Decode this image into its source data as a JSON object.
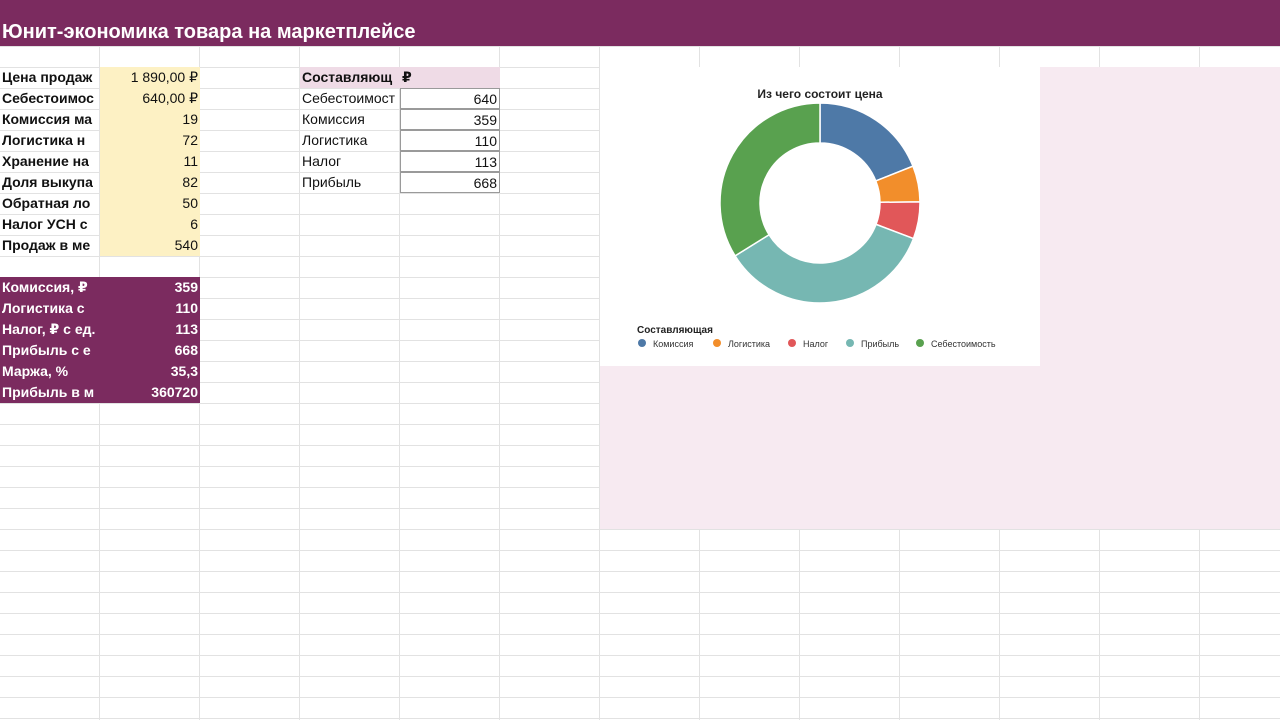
{
  "sheet": {
    "title": "Юнит-экономика товара на маркетплейсе"
  },
  "inputs": [
    {
      "label": "Цена продаж",
      "value": "1 890,00 ₽"
    },
    {
      "label": "Себестоимос",
      "value": "640,00 ₽"
    },
    {
      "label": "Комиссия ма",
      "value": "19"
    },
    {
      "label": "Логистика н",
      "value": "72"
    },
    {
      "label": "Хранение на",
      "value": "11"
    },
    {
      "label": "Доля выкупа",
      "value": "82"
    },
    {
      "label": "Обратная ло",
      "value": "50"
    },
    {
      "label": "Налог УСН с",
      "value": "6"
    },
    {
      "label": "Продаж в ме",
      "value": "540"
    }
  ],
  "results": [
    {
      "label": "Комиссия, ₽",
      "value": "359"
    },
    {
      "label": "Логистика с",
      "value": "110"
    },
    {
      "label": "Налог, ₽ с ед.",
      "value": "113"
    },
    {
      "label": "Прибыль с е",
      "value": "668"
    },
    {
      "label": "Маржа, %",
      "value": "35,3"
    },
    {
      "label": "Прибыль в м",
      "value": "360720"
    }
  ],
  "components_table": {
    "header_label": "Составляющ",
    "header_value": "₽",
    "rows": [
      {
        "label": "Себестоимост",
        "value": "640"
      },
      {
        "label": "Комиссия",
        "value": "359"
      },
      {
        "label": "Логистика",
        "value": "110"
      },
      {
        "label": "Налог",
        "value": "113"
      },
      {
        "label": "Прибыль",
        "value": "668"
      }
    ]
  },
  "chart_data": {
    "type": "pie",
    "title": "Из чего состоит цена",
    "legend_title": "Составляющая",
    "legend_position": "bottom",
    "categories": [
      "Комиссия",
      "Логистика",
      "Налог",
      "Прибыль",
      "Себестоимость"
    ],
    "values": [
      359,
      110,
      113,
      668,
      640
    ],
    "colors": [
      "#4e79a7",
      "#f28e2b",
      "#e15759",
      "#76b7b2",
      "#59a14f"
    ]
  },
  "colors": {
    "header_purple": "#7b2b5f",
    "input_yellow": "#fdf1c4",
    "table_header_pink": "#efdbe6",
    "pink_area": "#f7eaf1"
  }
}
